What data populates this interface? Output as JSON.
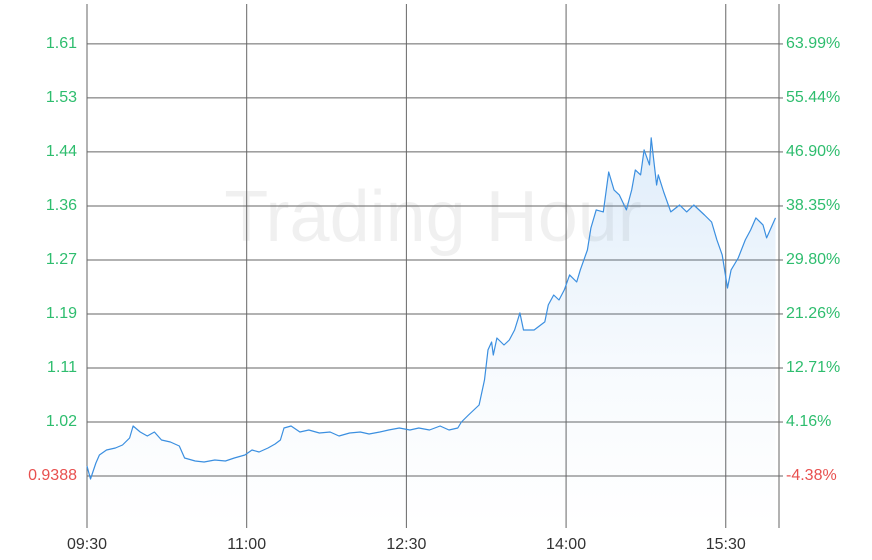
{
  "chart_data": {
    "type": "line",
    "watermark": "Trading Hour",
    "line_color": "#3b8fe0",
    "up_color": "#2ebd6e",
    "down_color": "#e8504f",
    "grid": true,
    "xlim": [
      "09:30",
      "16:00"
    ],
    "xticks": [
      "09:30",
      "11:00",
      "12:30",
      "14:00",
      "15:30"
    ],
    "ylim": [
      0.858,
      1.672
    ],
    "yticks": [
      0.9388,
      {
        "value": 1.0227,
        "label": "1.02"
      },
      {
        "value": 1.1066,
        "label": "1.11"
      },
      {
        "value": 1.1905,
        "label": "1.19"
      },
      {
        "value": 1.2744,
        "label": "1.27"
      },
      {
        "value": 1.3583,
        "label": "1.36"
      },
      {
        "value": 1.4422,
        "label": "1.44"
      },
      {
        "value": 1.5261,
        "label": "1.53"
      },
      {
        "value": 1.61,
        "label": "1.61"
      }
    ],
    "y2lim": [
      -12.61,
      70.31
    ],
    "y2ticks": [
      {
        "value": -4.38,
        "label": "-4.38%"
      },
      {
        "value": 4.16,
        "label": "4.16%"
      },
      {
        "value": 12.71,
        "label": "12.71%"
      },
      {
        "value": 21.26,
        "label": "21.26%"
      },
      {
        "value": 29.8,
        "label": "29.80%"
      },
      {
        "value": 38.35,
        "label": "38.35%"
      },
      {
        "value": 46.9,
        "label": "46.90%"
      },
      {
        "value": 55.44,
        "label": "55.44%"
      },
      {
        "value": 63.99,
        "label": "63.99%"
      }
    ],
    "x": [
      "09:30",
      "09:32",
      "09:35",
      "09:37",
      "09:41",
      "09:46",
      "09:50",
      "09:54",
      "09:56",
      "10:00",
      "10:04",
      "10:08",
      "10:12",
      "10:17",
      "10:22",
      "10:25",
      "10:31",
      "10:36",
      "10:42",
      "10:48",
      "10:53",
      "10:59",
      "11:03",
      "11:07",
      "11:12",
      "11:16",
      "11:19",
      "11:21",
      "11:25",
      "11:30",
      "11:35",
      "11:41",
      "11:47",
      "11:52",
      "11:58",
      "12:04",
      "12:09",
      "12:15",
      "12:20",
      "12:26",
      "12:32",
      "12:37",
      "12:43",
      "12:49",
      "12:54",
      "12:59",
      "13:01",
      "13:05",
      "13:11",
      "13:14",
      "13:16",
      "13:18",
      "13:19",
      "13:21",
      "13:25",
      "13:28",
      "13:31",
      "13:34",
      "13:36",
      "13:42",
      "13:48",
      "13:50",
      "13:53",
      "13:56",
      "13:59",
      "14:02",
      "14:06",
      "14:08",
      "14:12",
      "14:14",
      "14:17",
      "14:21",
      "14:24",
      "14:27",
      "14:30",
      "14:34",
      "14:37",
      "14:39",
      "14:42",
      "14:44",
      "14:47",
      "14:48",
      "14:51",
      "14:52",
      "14:55",
      "14:59",
      "15:04",
      "15:08",
      "15:12",
      "15:18",
      "15:22",
      "15:25",
      "15:28",
      "15:31",
      "15:33",
      "15:37",
      "15:41",
      "15:44",
      "15:47",
      "15:51",
      "15:53",
      "15:55",
      "15:58"
    ],
    "values": [
      0.9543,
      0.9341,
      0.959,
      0.9714,
      0.9792,
      0.9823,
      0.987,
      0.9978,
      1.0165,
      1.0072,
      1.0009,
      1.0072,
      0.9947,
      0.9916,
      0.9854,
      0.9668,
      0.9621,
      0.9606,
      0.9637,
      0.9621,
      0.9668,
      0.9714,
      0.9792,
      0.9761,
      0.9823,
      0.9885,
      0.9947,
      1.0134,
      1.0165,
      1.0072,
      1.0103,
      1.0056,
      1.0072,
      1.0009,
      1.0056,
      1.0072,
      1.0041,
      1.0072,
      1.0103,
      1.0134,
      1.0103,
      1.0134,
      1.0103,
      1.0165,
      1.0103,
      1.0134,
      1.0227,
      1.0336,
      1.0491,
      1.088,
      1.1346,
      1.147,
      1.1268,
      1.1532,
      1.1423,
      1.1501,
      1.1656,
      1.1921,
      1.1656,
      1.1656,
      1.1781,
      1.2045,
      1.22,
      1.2122,
      1.2278,
      1.2511,
      1.2402,
      1.2589,
      1.2899,
      1.3241,
      1.3521,
      1.349,
      1.4111,
      1.3832,
      1.3754,
      1.3521,
      1.3832,
      1.4142,
      1.4065,
      1.4453,
      1.422,
      1.464,
      1.3909,
      1.4065,
      1.38,
      1.349,
      1.3598,
      1.349,
      1.3598,
      1.3443,
      1.3334,
      1.3055,
      1.2822,
      1.2309,
      1.2589,
      1.2775,
      1.3055,
      1.321,
      1.3397,
      1.3288,
      1.3086,
      1.321,
      1.3397
    ]
  }
}
